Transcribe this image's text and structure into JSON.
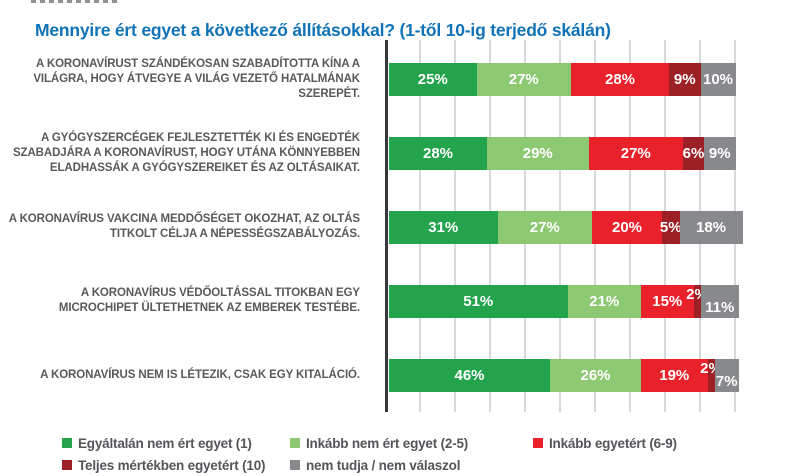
{
  "title": "Mennyire ért egyet a következő állításokkal? (1-től 10-ig terjedő skálán)",
  "chart_data": {
    "type": "bar",
    "orientation": "horizontal",
    "stacked": true,
    "unit": "%",
    "title": "Mennyire ért egyet a következő állításokkal? (1-től 10-ig terjedő skálán)",
    "axis": {
      "min": 0,
      "max": 100,
      "gridline_step": 10,
      "grid": true
    },
    "legend_position": "bottom",
    "categories": [
      "A KORONAVÍRUST SZÁNDÉKOSAN SZABADÍTOTTA KÍNA A VILÁGRA, HOGY ÁTVEGYE A VILÁG VEZETŐ HATALMÁNAK SZEREPÉT.",
      "A GYÓGYSZERCÉGEK FEJLESZTETTÉK KI ÉS ENGEDTÉK SZABADJÁRA A KORONAVÍRUST, HOGY UTÁNA KÖNNYEBBEN ELADHASSÁK A GYÓGYSZEREIKET ÉS AZ OLTÁSAIKAT.",
      "A KORONAVÍRUS VAKCINA MEDDŐSÉGET OKOZHAT, AZ OLTÁS TITKOLT CÉLJA A NÉPESSÉGSZABÁLYOZÁS.",
      "A KORONAVÍRUS VÉDŐOLTÁSSAL TITOKBAN EGY MICROCHIPET ÜLTETHETNEK AZ EMBEREK TESTÉBE.",
      "A KORONAVÍRUS NEM IS LÉTEZIK, CSAK EGY KITALÁCIÓ."
    ],
    "series": [
      {
        "name": "Egyáltalán nem ért egyet (1)",
        "color": "#23a34c",
        "values": [
          25,
          28,
          31,
          51,
          46
        ]
      },
      {
        "name": "Inkább nem ért egyet (2-5)",
        "color": "#8dc873",
        "values": [
          27,
          29,
          27,
          21,
          26
        ]
      },
      {
        "name": "Inkább egyetért (6-9)",
        "color": "#e8212a",
        "values": [
          28,
          27,
          20,
          15,
          19
        ]
      },
      {
        "name": "Teljes mértékben egyetért (10)",
        "color": "#9c2026",
        "values": [
          9,
          6,
          5,
          2,
          2
        ]
      },
      {
        "name": "nem tudja / nem válaszol",
        "color": "#87898c",
        "values": [
          10,
          9,
          18,
          11,
          7
        ]
      }
    ],
    "value_label_format": "{value}%"
  },
  "legend": {
    "items": [
      {
        "label": "Egyáltalán nem ért egyet (1)",
        "color": "#23a34c"
      },
      {
        "label": "Inkább nem ért egyet (2-5)",
        "color": "#8dc873"
      },
      {
        "label": "Inkább egyetért (6-9)",
        "color": "#e8212a"
      },
      {
        "label": "Teljes mértékben egyetért (10)",
        "color": "#9c2026"
      },
      {
        "label": "nem tudja / nem válaszol",
        "color": "#87898c"
      }
    ]
  },
  "colors": {
    "title_blue": "#1173b7",
    "label_gray": "#58595b",
    "gridline": "#d8d9da",
    "axis": "#37383b"
  }
}
